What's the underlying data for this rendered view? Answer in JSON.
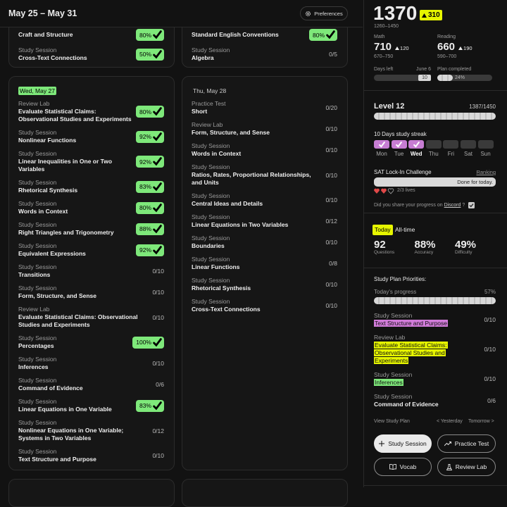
{
  "header": {
    "title": "May 25 – May 31",
    "preferences": "Preferences"
  },
  "week": {
    "top_cards": [
      {
        "items": [
          {
            "title": "Craft and Structure",
            "score": "80%",
            "done": true
          },
          {
            "label": "Study Session",
            "title": "Cross-Text Connections",
            "score": "50%",
            "done": true
          }
        ]
      },
      {
        "items": [
          {
            "title": "Standard English Conventions",
            "score": "80%",
            "done": true
          },
          {
            "label": "Study Session",
            "title": "Algebra",
            "score": "0/5",
            "done": false
          }
        ]
      }
    ],
    "day_cards": [
      {
        "date": "Wed, May 27",
        "today": true,
        "items": [
          {
            "label": "Review Lab",
            "title": "Evaluate Statistical Claims: Observational Studies and Experiments",
            "score": "80%",
            "done": true
          },
          {
            "label": "Study Session",
            "title": "Nonlinear Functions",
            "score": "92%",
            "done": true
          },
          {
            "label": "Study Session",
            "title": "Linear Inequalities in One or Two Variables",
            "score": "92%",
            "done": true
          },
          {
            "label": "Study Session",
            "title": "Rhetorical Synthesis",
            "score": "83%",
            "done": true
          },
          {
            "label": "Study Session",
            "title": "Words in Context",
            "score": "80%",
            "done": true
          },
          {
            "label": "Study Session",
            "title": "Right Triangles and Trigonometry",
            "score": "88%",
            "done": true
          },
          {
            "label": "Study Session",
            "title": "Equivalent Expressions",
            "score": "92%",
            "done": true
          },
          {
            "label": "Study Session",
            "title": "Transitions",
            "score": "0/10",
            "done": false
          },
          {
            "label": "Study Session",
            "title": "Form, Structure, and Sense",
            "score": "0/10",
            "done": false
          },
          {
            "label": "Review Lab",
            "title": "Evaluate Statistical Claims: Observational Studies and Experiments",
            "score": "0/10",
            "done": false
          },
          {
            "label": "Study Session",
            "title": "Percentages",
            "score": "100%",
            "done": true
          },
          {
            "label": "Study Session",
            "title": "Inferences",
            "score": "0/10",
            "done": false
          },
          {
            "label": "Study Session",
            "title": "Command of Evidence",
            "score": "0/6",
            "done": false
          },
          {
            "label": "Study Session",
            "title": "Linear Equations in One Variable",
            "score": "83%",
            "done": true
          },
          {
            "label": "Study Session",
            "title": "Nonlinear Equations in One Variable; Systems in Two Variables",
            "score": "0/12",
            "done": false
          },
          {
            "label": "Study Session",
            "title": "Text Structure and Purpose",
            "score": "0/10",
            "done": false
          }
        ]
      },
      {
        "date": "Thu, May 28",
        "today": false,
        "items": [
          {
            "label": "Practice Test",
            "title": "Short",
            "score": "0/20",
            "done": false
          },
          {
            "label": "Review Lab",
            "title": "Form, Structure, and Sense",
            "score": "0/10",
            "done": false
          },
          {
            "label": "Study Session",
            "title": "Words in Context",
            "score": "0/10",
            "done": false
          },
          {
            "label": "Study Session",
            "title": "Ratios, Rates, Proportional Relationships, and Units",
            "score": "0/10",
            "done": false
          },
          {
            "label": "Study Session",
            "title": "Central Ideas and Details",
            "score": "0/10",
            "done": false
          },
          {
            "label": "Study Session",
            "title": "Linear Equations in Two Variables",
            "score": "0/12",
            "done": false
          },
          {
            "label": "Study Session",
            "title": "Boundaries",
            "score": "0/10",
            "done": false
          },
          {
            "label": "Study Session",
            "title": "Linear Functions",
            "score": "0/8",
            "done": false
          },
          {
            "label": "Study Session",
            "title": "Rhetorical Synthesis",
            "score": "0/10",
            "done": false
          },
          {
            "label": "Study Session",
            "title": "Cross-Text Connections",
            "score": "0/10",
            "done": false
          }
        ]
      }
    ]
  },
  "sidebar": {
    "score": {
      "total": "1370",
      "change": "310",
      "range": "1260–1450",
      "sections": [
        {
          "name": "Math",
          "score": "710",
          "change": "120",
          "range": "670–750"
        },
        {
          "name": "Reading",
          "score": "660",
          "change": "190",
          "range": "590–700"
        }
      ],
      "days_left": {
        "label": "Days left",
        "date": "June 6",
        "value": "10"
      },
      "plan_completed": {
        "label": "Plan completed",
        "value": "24%"
      }
    },
    "level": {
      "title": "Level 12",
      "points": "1387/1450"
    },
    "streak": {
      "title": "10 Days study streak",
      "days": [
        {
          "name": "Mon",
          "done": true
        },
        {
          "name": "Tue",
          "done": true
        },
        {
          "name": "Wed",
          "done": true,
          "today": true
        },
        {
          "name": "Thu",
          "done": false
        },
        {
          "name": "Fri",
          "done": false
        },
        {
          "name": "Sat",
          "done": false
        },
        {
          "name": "Sun",
          "done": false
        }
      ]
    },
    "challenge": {
      "title": "SAT Lock-In Challenge",
      "ranking": "Ranking",
      "status": "Done for today.",
      "lives": "2/3 lives",
      "share_text": "Did you share your progress on",
      "share_link": "Discord",
      "share_end": "?"
    },
    "stats": {
      "tabs": [
        "Today",
        "All-time"
      ],
      "items": [
        {
          "value": "92",
          "label": "Questions"
        },
        {
          "value": "88%",
          "label": "Accuracy"
        },
        {
          "value": "49%",
          "label": "Difficulty"
        }
      ]
    },
    "priorities": {
      "title": "Study Plan Priorities:",
      "progress_label": "Today's progress",
      "progress_value": "57%",
      "items": [
        {
          "label": "Study Session",
          "title": "Text Structure and Purpose",
          "score": "0/10",
          "highlight": "#d17bd9"
        },
        {
          "label": "Review Lab",
          "title": "Evaluate Statistical Claims: Observational Studies and Experiments",
          "score": "0/10",
          "highlight": "#e6f500"
        },
        {
          "label": "Study Session",
          "title": "Inferences",
          "score": "0/10",
          "highlight": "#7ee87a"
        },
        {
          "label": "Study Session",
          "title": "Command of Evidence",
          "score": "0/6"
        }
      ],
      "view": "View Study Plan",
      "yesterday": "< Yesterday",
      "tomorrow": "Tomorrow >"
    },
    "buttons": [
      "Study Session",
      "Practice Test",
      "Vocab",
      "Review Lab"
    ]
  }
}
